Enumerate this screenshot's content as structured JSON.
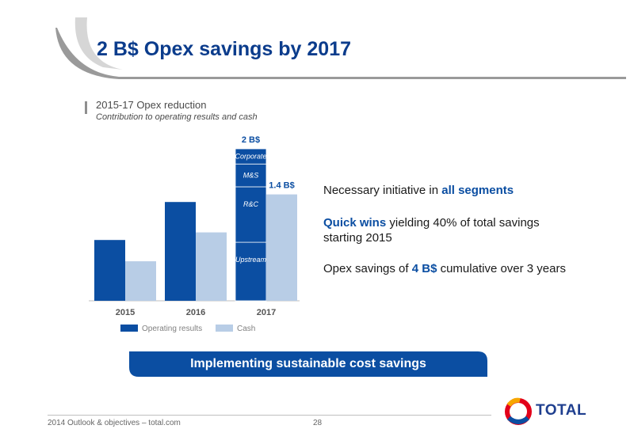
{
  "slide": {
    "title": "2 B$ Opex savings by 2017"
  },
  "chart_data": {
    "type": "bar",
    "title": "2015-17 Opex reduction",
    "subtitle": "Contribution to operating results and cash",
    "categories": [
      "2015",
      "2016",
      "2017"
    ],
    "series": [
      {
        "name": "Operating results",
        "values": [
          0.8,
          1.3,
          2.0
        ]
      },
      {
        "name": "Cash",
        "values": [
          0.52,
          0.9,
          1.4
        ]
      }
    ],
    "segments_2017": [
      {
        "label": "Upstream",
        "value": 0.77
      },
      {
        "label": "R&C",
        "value": 0.73
      },
      {
        "label": "M&S",
        "value": 0.3
      },
      {
        "label": "Corporate",
        "value": 0.2
      }
    ],
    "data_labels": {
      "operating_2017": "2 B$",
      "cash_2017": "1.4 B$"
    },
    "ylim": [
      0,
      2.0
    ],
    "grid": false,
    "legend_position": "bottom",
    "colors": {
      "operating": "#0b4ea2",
      "cash": "#b8cde6"
    }
  },
  "bullets": [
    {
      "pre": "Necessary initiative in ",
      "hl": "all segments",
      "post": ""
    },
    {
      "pre": "",
      "hl": "Quick wins",
      "post": " yielding 40% of total savings starting 2015"
    },
    {
      "pre": "Opex savings of ",
      "hl": "4 B$",
      "post": " cumulative over 3 years"
    }
  ],
  "banner": {
    "text": "Implementing sustainable cost savings",
    "color": "#0b4ea2"
  },
  "footer": {
    "text": "2014 Outlook & objectives – total.com",
    "page": "28"
  },
  "logo": {
    "text": "TOTAL"
  }
}
